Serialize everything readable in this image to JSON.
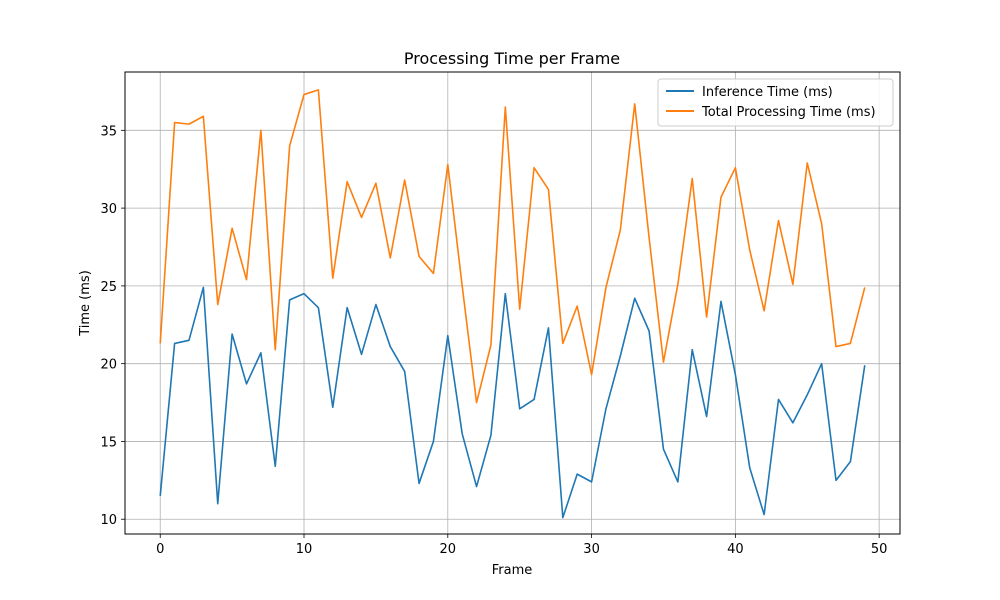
{
  "chart_data": {
    "type": "line",
    "title": "Processing Time per Frame",
    "xlabel": "Frame",
    "ylabel": "Time (ms)",
    "xlim": [
      -2.45,
      51.45
    ],
    "ylim": [
      9.05,
      38.75
    ],
    "xticks": [
      0,
      10,
      20,
      30,
      40,
      50
    ],
    "yticks": [
      10,
      15,
      20,
      25,
      30,
      35
    ],
    "grid": true,
    "legend_position": "upper right",
    "x": [
      0,
      1,
      2,
      3,
      4,
      5,
      6,
      7,
      8,
      9,
      10,
      11,
      12,
      13,
      14,
      15,
      16,
      17,
      18,
      19,
      20,
      21,
      22,
      23,
      24,
      25,
      26,
      27,
      28,
      29,
      30,
      31,
      32,
      33,
      34,
      35,
      36,
      37,
      38,
      39,
      40,
      41,
      42,
      43,
      44,
      45,
      46,
      47,
      48,
      49
    ],
    "series": [
      {
        "name": "Inference Time (ms)",
        "color": "#1f77b4",
        "values": [
          11.5,
          21.3,
          21.5,
          24.9,
          11.0,
          21.9,
          18.7,
          20.7,
          13.4,
          24.1,
          24.5,
          23.6,
          17.2,
          23.6,
          20.6,
          23.8,
          21.1,
          19.5,
          12.3,
          15.0,
          21.8,
          15.5,
          12.1,
          15.4,
          24.5,
          17.1,
          17.7,
          22.3,
          10.1,
          12.9,
          12.4,
          17.1,
          20.5,
          24.2,
          22.1,
          14.5,
          12.4,
          20.9,
          16.6,
          24.0,
          19.3,
          13.3,
          10.3,
          17.7,
          16.2,
          18.0,
          20.0,
          12.5,
          13.7,
          19.9
        ]
      },
      {
        "name": "Total Processing Time (ms)",
        "color": "#ff7f0e",
        "values": [
          21.3,
          35.5,
          35.4,
          35.9,
          23.8,
          28.7,
          25.4,
          35.0,
          20.9,
          34.0,
          37.3,
          37.6,
          25.5,
          31.7,
          29.4,
          31.6,
          26.8,
          31.8,
          26.9,
          25.8,
          32.8,
          25.0,
          17.5,
          21.2,
          36.5,
          23.5,
          32.6,
          31.2,
          21.3,
          23.7,
          19.3,
          24.9,
          28.6,
          36.7,
          28.1,
          20.1,
          25.1,
          31.9,
          23.0,
          30.7,
          32.6,
          27.3,
          23.4,
          29.2,
          25.1,
          32.9,
          29.0,
          21.1,
          21.3,
          24.9
        ]
      }
    ]
  }
}
